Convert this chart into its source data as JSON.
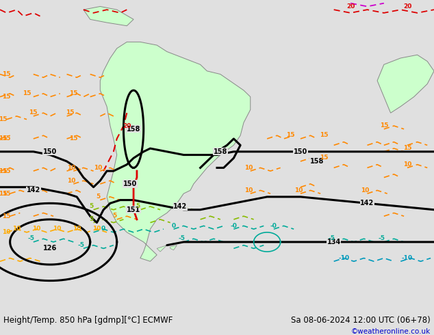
{
  "title_left": "Height/Temp. 850 hPa [gdmp][°C] ECMWF",
  "title_right": "Sa 08-06-2024 12:00 UTC (06+78)",
  "credit": "©weatheronline.co.uk",
  "credit_color": "#0000cc",
  "bg_color": "#e0e0e0",
  "land_color": "#ccffcc",
  "land_edge": "#888888",
  "fig_w": 6.34,
  "fig_h": 4.9,
  "dpi": 100,
  "title_fs": 8.5,
  "credit_fs": 7.5,
  "contour_color": "#000000",
  "contour_lw": 2.2,
  "orange": "#ff8800",
  "dark_orange": "#cc6600",
  "yellow_orange": "#ffaa00",
  "red": "#dd0000",
  "magenta": "#cc00cc",
  "green_yellow": "#88bb00",
  "teal": "#00aa99",
  "cyan_blue": "#0099bb",
  "blue": "#0044bb"
}
